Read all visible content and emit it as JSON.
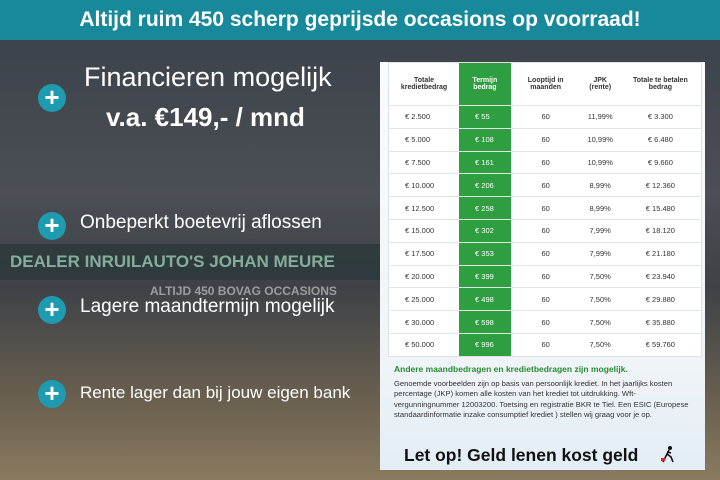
{
  "banner": {
    "title": "Altijd ruim 450 scherp geprijsde occasions op voorraad!"
  },
  "left": {
    "headline": "Financieren mogelijk",
    "price": "v.a. €149,- / mnd",
    "benefits": [
      "Onbeperkt boetevrij aflossen",
      "Lagere maandtermijn mogelijk",
      "Rente lager dan bij jouw eigen bank"
    ],
    "sign": "DEALER INRUILAUTO'S JOHAN MEURE",
    "sign2": "ALTIJD 450 BOVAG OCCASIONS"
  },
  "table": {
    "headers": [
      "Totale kredietbedrag",
      "Termijn bedrag",
      "Looptijd in maanden",
      "JPK (rente)",
      "Totale te betalen bedrag"
    ],
    "rows": [
      [
        "€ 2.500",
        "€ 55",
        "60",
        "11,99%",
        "€ 3.300"
      ],
      [
        "€ 5.000",
        "€ 108",
        "60",
        "10,99%",
        "€ 6.480"
      ],
      [
        "€ 7.500",
        "€ 161",
        "60",
        "10,99%",
        "€ 9.660"
      ],
      [
        "€ 10.000",
        "€ 206",
        "60",
        "8,99%",
        "€ 12.360"
      ],
      [
        "€ 12.500",
        "€ 258",
        "60",
        "8,99%",
        "€ 15.480"
      ],
      [
        "€ 15.000",
        "€ 302",
        "60",
        "7,99%",
        "€ 18.120"
      ],
      [
        "€ 17.500",
        "€ 353",
        "60",
        "7,99%",
        "€ 21.180"
      ],
      [
        "€ 20.000",
        "€ 399",
        "60",
        "7,50%",
        "€ 23.940"
      ],
      [
        "€ 25.000",
        "€ 498",
        "60",
        "7,50%",
        "€ 29.880"
      ],
      [
        "€ 30.000",
        "€ 598",
        "60",
        "7,50%",
        "€ 35.880"
      ],
      [
        "€ 50.000",
        "€ 996",
        "60",
        "7,50%",
        "€ 59.760"
      ]
    ]
  },
  "notes": {
    "highlight": "Andere maandbedragen en kredietbedragen zijn mogelijk.",
    "body": "Genoemde voorbeelden zijn op basis van persoonlijk krediet. In het jaarlijks kosten percentage (JKP) komen alle kosten van het krediet tot uitdrukking. Wft-vergunningnummer 12003200. Toetsing en registratie BKR te Tiel. Een ESIC (Europese standaardinformatie inzake consumptief krediet ) stellen wij graag voor je op.",
    "warning": "Let op! Geld lenen kost geld"
  }
}
